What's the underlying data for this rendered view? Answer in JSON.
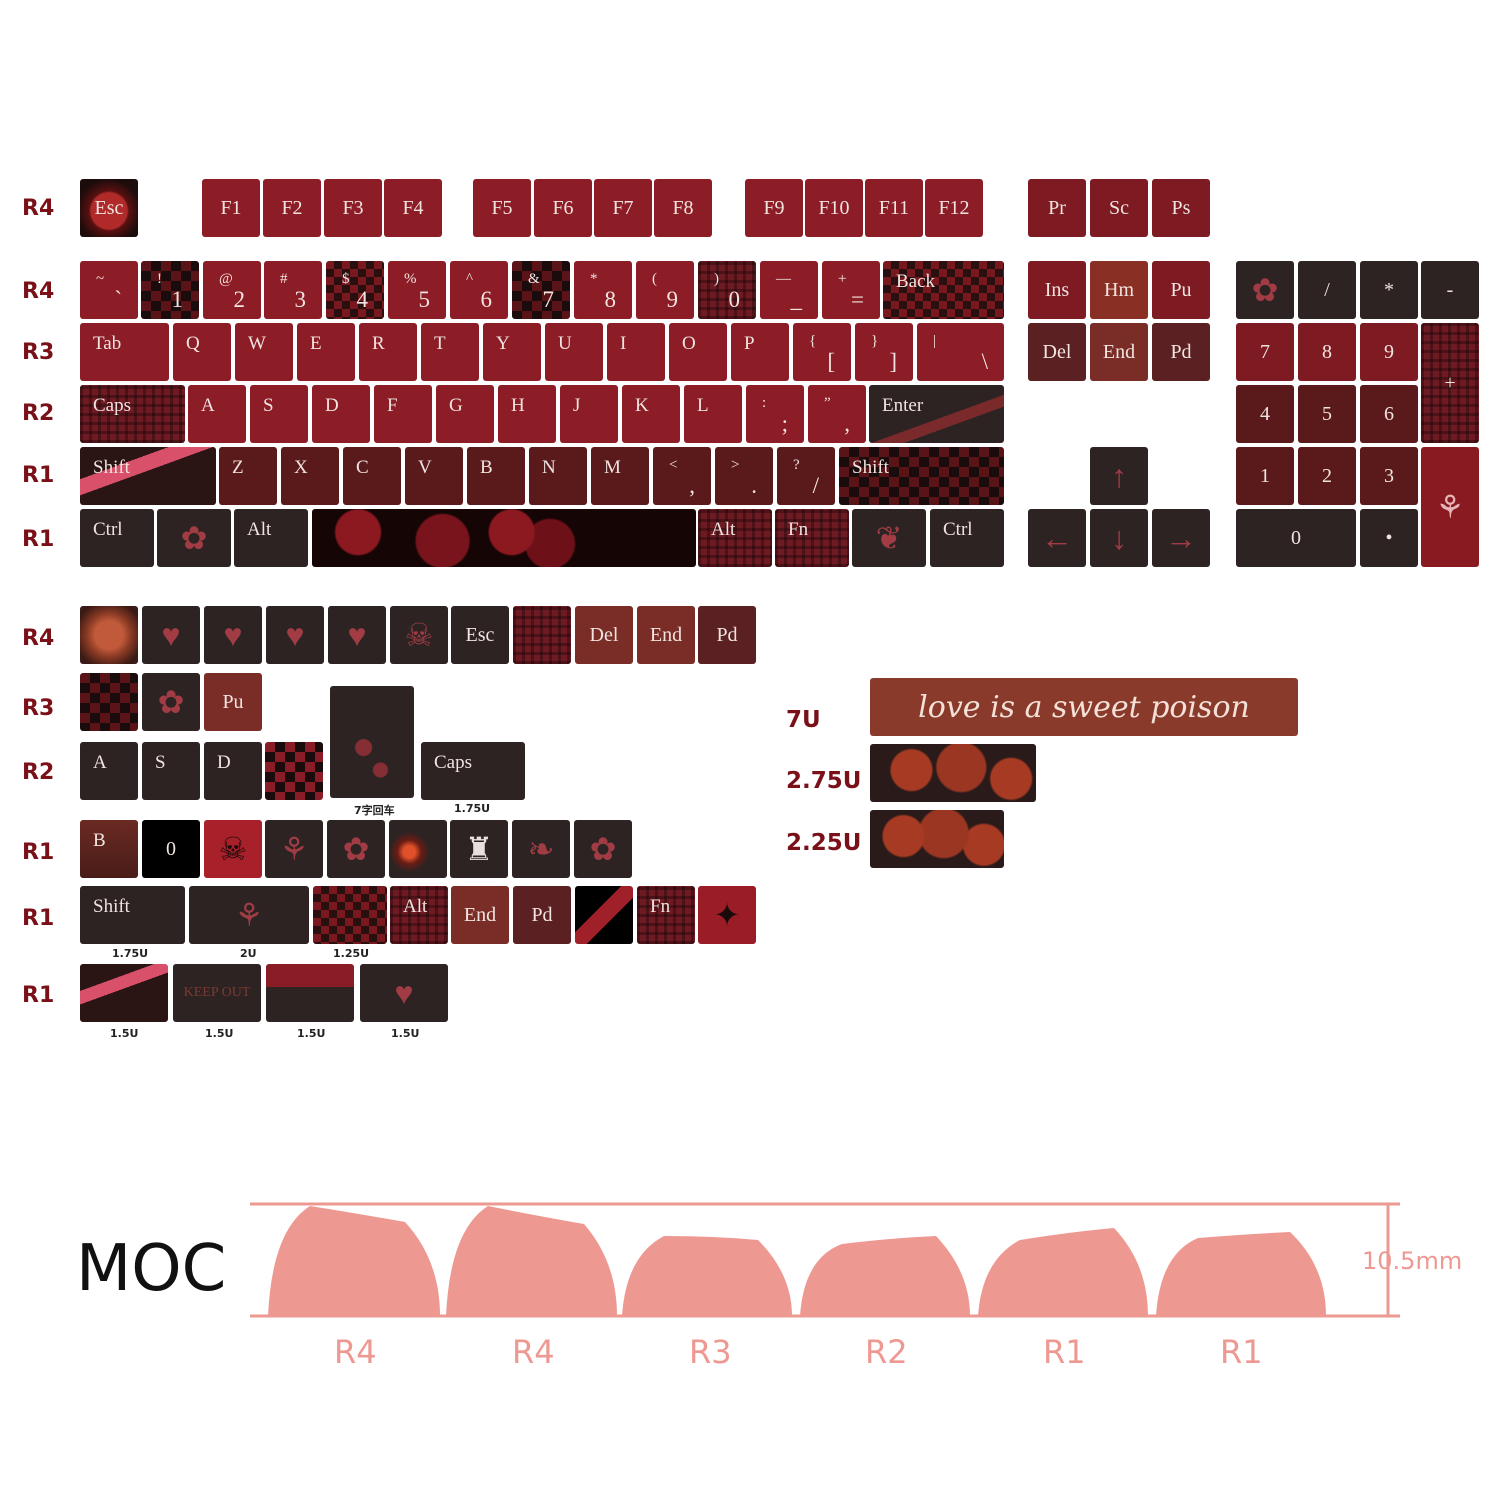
{
  "row_labels": {
    "fn_row": "R4",
    "num_row": "R4",
    "top_row": "R3",
    "home_row": "R2",
    "bottom_row": "R1",
    "mod_row": "R1",
    "extra_1": "R4",
    "extra_2": "R3",
    "extra_3": "R2",
    "extra_4": "R1",
    "extra_5": "R1",
    "extra_6": "R1"
  },
  "fn_row": {
    "esc": "Esc",
    "f_keys": [
      "F1",
      "F2",
      "F3",
      "F4",
      "F5",
      "F6",
      "F7",
      "F8",
      "F9",
      "F10",
      "F11",
      "F12"
    ],
    "print": [
      "Pr",
      "Sc",
      "Ps"
    ]
  },
  "num_row": {
    "keys": [
      {
        "top": "~",
        "bottom": "`"
      },
      {
        "top": "!",
        "bottom": "1"
      },
      {
        "top": "@",
        "bottom": "2"
      },
      {
        "top": "#",
        "bottom": "3"
      },
      {
        "top": "$",
        "bottom": "4"
      },
      {
        "top": "%",
        "bottom": "5"
      },
      {
        "top": "^",
        "bottom": "6"
      },
      {
        "top": "&",
        "bottom": "7"
      },
      {
        "top": "*",
        "bottom": "8"
      },
      {
        "top": "(",
        "bottom": "9"
      },
      {
        "top": ")",
        "bottom": "0"
      },
      {
        "top": "—",
        "bottom": "_"
      },
      {
        "top": "+",
        "bottom": "="
      }
    ],
    "back": "Back"
  },
  "top_row": {
    "tab": "Tab",
    "letters": [
      "Q",
      "W",
      "E",
      "R",
      "T",
      "Y",
      "U",
      "I",
      "O",
      "P"
    ],
    "brackets": [
      {
        "top": "{",
        "bottom": "["
      },
      {
        "top": "}",
        "bottom": "]"
      },
      {
        "top": "|",
        "bottom": "\\"
      }
    ]
  },
  "home_row": {
    "caps": "Caps",
    "letters": [
      "A",
      "S",
      "D",
      "F",
      "G",
      "H",
      "J",
      "K",
      "L"
    ],
    "punct": [
      {
        "top": ":",
        "bottom": ";"
      },
      {
        "top": "”",
        "bottom": ","
      }
    ],
    "enter": "Enter"
  },
  "bottom_row": {
    "shift": "Shift",
    "letters": [
      "Z",
      "X",
      "C",
      "V",
      "B",
      "N",
      "M"
    ],
    "punct": [
      {
        "top": "<",
        "bottom": ","
      },
      {
        "top": ">",
        "bottom": "."
      },
      {
        "top": "?",
        "bottom": "/"
      }
    ]
  },
  "mod_row": {
    "ctrl": "Ctrl",
    "alt": "Alt",
    "fn": "Fn"
  },
  "nav": {
    "row1": [
      "Ins",
      "Hm",
      "Pu"
    ],
    "row2": [
      "Del",
      "End",
      "Pd"
    ]
  },
  "numpad": {
    "ops": [
      "/",
      "*",
      "-"
    ],
    "r1": [
      "7",
      "8",
      "9"
    ],
    "r2": [
      "4",
      "5",
      "6"
    ],
    "r3": [
      "1",
      "2",
      "3"
    ],
    "plus": "+",
    "zero": "0",
    "dot": "•"
  },
  "extras": {
    "row1_text": [
      "Esc",
      "Del",
      "End",
      "Pd"
    ],
    "row2_text": [
      "Pu"
    ],
    "row3_text": [
      "A",
      "S",
      "D"
    ],
    "caps": "Caps",
    "enter_size": "7字回车",
    "caps_size": "1.75U",
    "row4_text": [
      "B",
      "0"
    ],
    "row5_text": [
      "Shift",
      "Alt",
      "End",
      "Pd",
      "Fn"
    ],
    "row5_sizes": [
      "1.75U",
      "2U",
      "1.25U"
    ],
    "row6_text": [
      "KEEP OUT"
    ],
    "row6_sizes": [
      "1.5U",
      "1.5U",
      "1.5U",
      "1.5U"
    ]
  },
  "spacebars": {
    "labels": [
      "7U",
      "2.75U",
      "2.25U"
    ],
    "slogan": "love is a sweet poison"
  },
  "profile": {
    "name": "MOC",
    "rows": [
      "R4",
      "R4",
      "R3",
      "R2",
      "R1",
      "R1"
    ],
    "height": "10.5mm"
  },
  "colors": {
    "row_label": "#7a1018",
    "profile_pink": "#ee9892",
    "key_red": "#8c1c26",
    "key_dark": "#2d2323"
  }
}
